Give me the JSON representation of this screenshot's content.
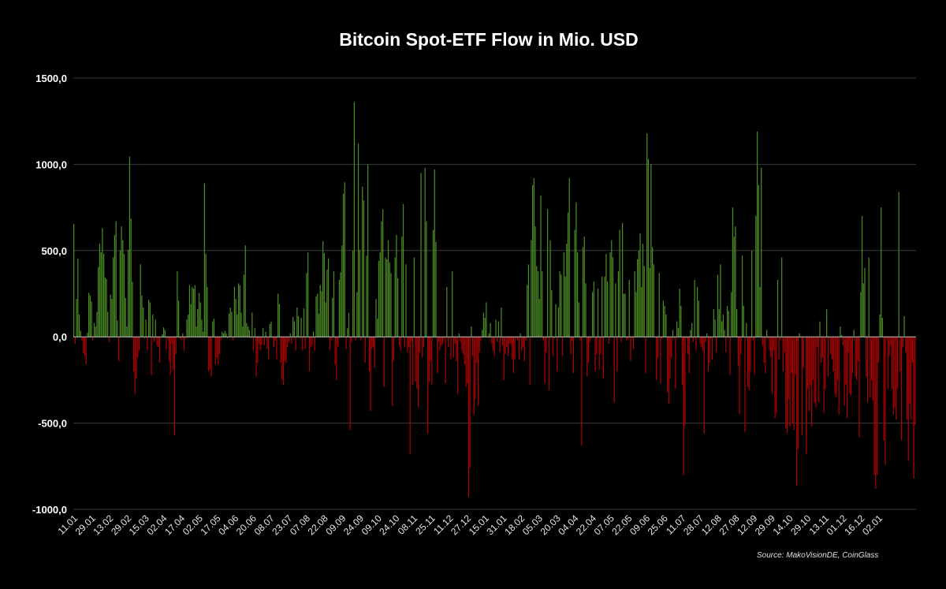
{
  "chart_data": {
    "type": "bar",
    "title": "Bitcoin Spot-ETF Flow in Mio. USD",
    "xlabel": "",
    "ylabel": "Mio. USD",
    "ylim": [
      -1000,
      1500
    ],
    "yticks": [
      "1500,0",
      "1000,0",
      "500,0",
      "0,0",
      "-500,0",
      "-1000,0"
    ],
    "ytick_values": [
      1500,
      1000,
      500,
      0,
      -500,
      -1000
    ],
    "grid": true,
    "legend": null,
    "colors": {
      "positive": "#4a8a24",
      "negative": "#b00000",
      "grid": "#3a3a3a",
      "zero": "#c8c8c8",
      "background": "#000000"
    },
    "xtick_labels": [
      "11.01",
      "29.01",
      "13.02",
      "29.02",
      "15.03",
      "02.04",
      "17.04",
      "02.05",
      "17.05",
      "04.06",
      "20.06",
      "08.07",
      "23.07",
      "07.08",
      "22.08",
      "09.09",
      "24.09",
      "09.10",
      "24.10",
      "08.11",
      "25.11",
      "11.12",
      "27.12",
      "15.01",
      "31.01",
      "18.02",
      "05.03",
      "20.03",
      "04.04",
      "22.04",
      "07.05",
      "22.05",
      "09.06",
      "25.06",
      "11.07",
      "28.07",
      "12.08",
      "27.08",
      "12.09",
      "29.09",
      "14.10",
      "29.10",
      "13.11",
      "01.12",
      "16.12",
      "02.01"
    ],
    "values": [
      655,
      -40,
      220,
      455,
      130,
      35,
      -20,
      -95,
      -110,
      -160,
      25,
      255,
      240,
      205,
      -20,
      80,
      60,
      145,
      405,
      540,
      490,
      630,
      480,
      345,
      335,
      145,
      -30,
      245,
      220,
      460,
      590,
      670,
      95,
      -140,
      500,
      640,
      560,
      480,
      225,
      60,
      505,
      1045,
      685,
      320,
      -200,
      -330,
      -240,
      -120,
      -80,
      420,
      240,
      170,
      -10,
      100,
      -80,
      215,
      200,
      -220,
      130,
      -30,
      100,
      -50,
      -60,
      -150,
      0,
      15,
      55,
      40,
      -70,
      -10,
      -140,
      -220,
      -40,
      -190,
      -570,
      -100,
      380,
      210,
      -10,
      -20,
      20,
      -80,
      -10,
      100,
      130,
      300,
      190,
      290,
      280,
      300,
      60,
      160,
      255,
      200,
      100,
      30,
      890,
      480,
      290,
      -200,
      -190,
      -230,
      90,
      105,
      -160,
      -120,
      -160,
      -100,
      -20,
      30,
      20,
      35,
      20,
      -10,
      135,
      170,
      145,
      -20,
      290,
      220,
      130,
      310,
      300,
      140,
      60,
      360,
      530,
      80,
      60,
      40,
      -10,
      140,
      -80,
      50,
      -230,
      -150,
      -40,
      -80,
      -50,
      50,
      -50,
      30,
      -70,
      -130,
      75,
      90,
      -10,
      -60,
      -20,
      -130,
      250,
      190,
      -150,
      -250,
      -280,
      -140,
      -150,
      -60,
      -30,
      20,
      -40,
      115,
      90,
      -80,
      170,
      120,
      -10,
      110,
      -80,
      165,
      -70,
      370,
      490,
      -200,
      -60,
      -50,
      30,
      -80,
      235,
      250,
      135,
      300,
      265,
      555,
      485,
      200,
      390,
      455,
      -80,
      -20,
      225,
      380,
      -160,
      -250,
      -55,
      330,
      375,
      530,
      830,
      895,
      -70,
      50,
      140,
      -540,
      -30,
      500,
      1360,
      -20,
      260,
      1120,
      505,
      -20,
      870,
      790,
      -150,
      470,
      1000,
      -200,
      -430,
      -70,
      -60,
      -180,
      220,
      105,
      440,
      490,
      670,
      740,
      -290,
      460,
      450,
      560,
      430,
      370,
      -400,
      -140,
      460,
      590,
      340,
      -50,
      -80,
      580,
      770,
      -60,
      420,
      -90,
      -60,
      -680,
      -30,
      -280,
      460,
      -260,
      -300,
      -410,
      -90,
      950,
      -120,
      -60,
      980,
      670,
      -560,
      -260,
      -140,
      -280,
      620,
      970,
      550,
      -210,
      -30,
      -80,
      -50,
      -40,
      -10,
      -270,
      290,
      -60,
      -10,
      -130,
      380,
      -120,
      -40,
      -140,
      -330,
      20,
      -30,
      -80,
      -100,
      -160,
      -290,
      -270,
      -930,
      -760,
      60,
      -110,
      -450,
      -360,
      -150,
      -400,
      -90,
      -20,
      40,
      140,
      110,
      200,
      -5,
      20,
      80,
      -40,
      -80,
      -110,
      100,
      -30,
      90,
      -90,
      170,
      -50,
      -250,
      -100,
      -60,
      -110,
      -40,
      -40,
      -130,
      -210,
      -130,
      -10,
      -20,
      -130,
      20,
      -80,
      -60,
      -140,
      -20,
      300,
      420,
      -280,
      560,
      880,
      920,
      640,
      410,
      380,
      220,
      820,
      380,
      -20,
      -270,
      -90,
      740,
      -310,
      560,
      270,
      -110,
      -10,
      190,
      -200,
      170,
      380,
      360,
      -110,
      490,
      350,
      540,
      720,
      920,
      -100,
      -25,
      -210,
      620,
      780,
      490,
      200,
      -20,
      -630,
      520,
      580,
      310,
      -230,
      -150,
      -30,
      -10,
      260,
      320,
      -200,
      -100,
      280,
      -190,
      -100,
      350,
      -240,
      350,
      480,
      320,
      -40,
      490,
      560,
      460,
      -380,
      310,
      -200,
      380,
      620,
      -30,
      660,
      250,
      250,
      -20,
      -10,
      330,
      -140,
      -10,
      -70,
      380,
      260,
      450,
      500,
      600,
      290,
      540,
      410,
      -210,
      1180,
      1030,
      400,
      1000,
      520,
      420,
      -5,
      -250,
      -120,
      370,
      -270,
      -10,
      210,
      180,
      130,
      -320,
      -390,
      -240,
      -120,
      40,
      -10,
      -300,
      90,
      50,
      280,
      180,
      -280,
      -800,
      -510,
      -10,
      -100,
      -210,
      40,
      80,
      -30,
      330,
      -80,
      290,
      210,
      -40,
      -60,
      -80,
      -560,
      -30,
      20,
      -200,
      -150,
      -10,
      -130,
      160,
      100,
      -90,
      360,
      160,
      420,
      90,
      130,
      40,
      -90,
      180,
      150,
      -220,
      260,
      750,
      580,
      640,
      160,
      -170,
      -450,
      -100,
      470,
      180,
      -550,
      80,
      -290,
      -310,
      -200,
      500,
      -20,
      -220,
      700,
      1190,
      880,
      290,
      980,
      -50,
      -150,
      -210,
      40,
      -10,
      -80,
      -120,
      -330,
      -80,
      -470,
      -440,
      330,
      -130,
      -20,
      460,
      -200,
      -90,
      -530,
      -560,
      -360,
      -520,
      -210,
      -500,
      -540,
      -220,
      -860,
      -650,
      20,
      -5,
      -570,
      -180,
      -5,
      -680,
      -300,
      -430,
      -280,
      -520,
      -250,
      -380,
      -410,
      -60,
      -380,
      90,
      -150,
      -120,
      -440,
      -300,
      160,
      -230,
      -10,
      -100,
      -130,
      -200,
      -330,
      -350,
      -250,
      -450,
      60,
      10,
      -50,
      -400,
      -280,
      -470,
      -90,
      -330,
      -340,
      -210,
      40,
      -230,
      -250,
      -140,
      -580,
      260,
      700,
      310,
      400,
      -230,
      -380,
      460,
      -350,
      -250,
      -370,
      -800,
      -880,
      -800,
      -150,
      130,
      750,
      110,
      -600,
      -740,
      -10,
      -300,
      -110,
      -50,
      -300,
      -450,
      -410,
      -480,
      -300,
      840,
      -200,
      -600,
      -60,
      120,
      -90,
      -480,
      -720,
      -390,
      -480,
      -150,
      -820,
      -510
    ]
  },
  "footer": {
    "source": "Source: MakoVisionDE, CoinGlass"
  }
}
